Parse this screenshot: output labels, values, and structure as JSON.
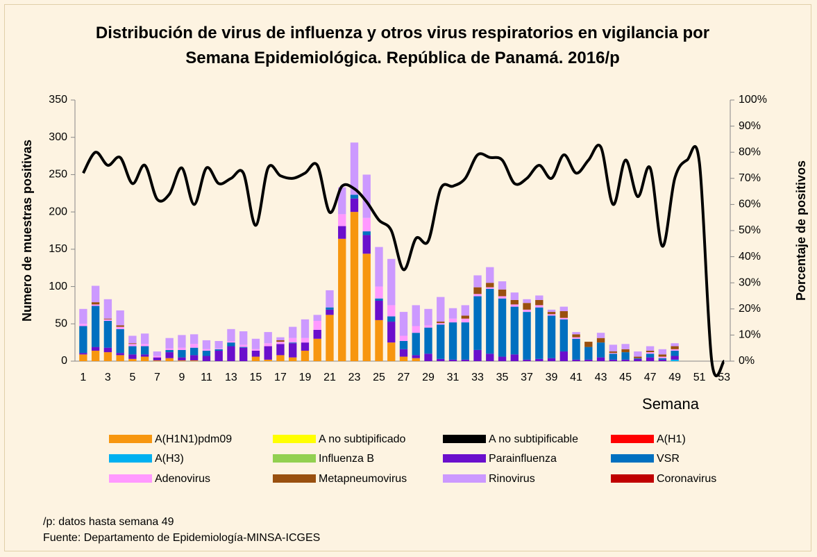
{
  "chart_data": {
    "type": "bar_line",
    "title": "Distribución de virus de influenza y otros virus respiratorios en vigilancia por Semana Epidemiológica. República de Panamá. 2016/p",
    "y_label": "Numero de muestras positivas",
    "y2_label": "Porcentaje de positivos",
    "x_label": "Semana",
    "categories": [
      1,
      null,
      3,
      null,
      5,
      null,
      7,
      null,
      9,
      null,
      11,
      null,
      13,
      null,
      15,
      null,
      17,
      null,
      19,
      null,
      21,
      null,
      23,
      null,
      25,
      null,
      27,
      null,
      29,
      null,
      31,
      null,
      33,
      null,
      35,
      null,
      37,
      null,
      39,
      null,
      41,
      null,
      43,
      null,
      45,
      null,
      47,
      null,
      49,
      null,
      51,
      null,
      53
    ],
    "ylim": [
      0,
      350
    ],
    "yticks": [
      0,
      50,
      100,
      150,
      200,
      250,
      300,
      350
    ],
    "y2lim": [
      0,
      100
    ],
    "y2ticks": [
      {
        "value": 0,
        "label": "0%"
      },
      {
        "value": 10,
        "label": "10%"
      },
      {
        "value": 20,
        "label": "20%"
      },
      {
        "value": 30,
        "label": "30%"
      },
      {
        "value": 40,
        "label": "40%"
      },
      {
        "value": 50,
        "label": "50%"
      },
      {
        "value": 60,
        "label": "60%"
      },
      {
        "value": 70,
        "label": "70%"
      },
      {
        "value": 80,
        "label": "80%"
      },
      {
        "value": 90,
        "label": "90%"
      },
      {
        "value": 100,
        "label": "100%"
      }
    ],
    "stacked": true,
    "series": [
      {
        "name": "A(H1N1)pdm09",
        "color": "#f7960f",
        "values": [
          9,
          14,
          12,
          8,
          3,
          6,
          1,
          4,
          1,
          1,
          0,
          0,
          0,
          0,
          6,
          2,
          8,
          5,
          14,
          30,
          62,
          164,
          200,
          144,
          55,
          25,
          6,
          4,
          0,
          0,
          0,
          0,
          0,
          0,
          0,
          0,
          0,
          0,
          0,
          0,
          0,
          0,
          0,
          0,
          0,
          0,
          0,
          0,
          0,
          0,
          0,
          0,
          0
        ]
      },
      {
        "name": "A no subtipificado",
        "color": "#ffff00",
        "values": [
          0,
          0,
          0,
          0,
          0,
          0,
          0,
          0,
          0,
          0,
          0,
          0,
          0,
          0,
          0,
          0,
          0,
          0,
          0,
          0,
          0,
          0,
          0,
          0,
          0,
          0,
          0,
          0,
          0,
          0,
          0,
          0,
          0,
          0,
          0,
          0,
          0,
          0,
          0,
          0,
          0,
          0,
          0,
          0,
          0,
          0,
          0,
          0,
          0,
          0,
          0,
          0,
          0
        ]
      },
      {
        "name": "A no subtipificable",
        "color": "#000000",
        "values": [
          0,
          0,
          0,
          0,
          0,
          0,
          0,
          0,
          0,
          0,
          0,
          0,
          0,
          0,
          0,
          0,
          0,
          0,
          0,
          0,
          0,
          0,
          0,
          0,
          0,
          0,
          0,
          0,
          0,
          0,
          0,
          0,
          0,
          0,
          0,
          0,
          0,
          0,
          0,
          0,
          0,
          0,
          0,
          0,
          0,
          0,
          0,
          0,
          0,
          0,
          0,
          0,
          0
        ]
      },
      {
        "name": "A(H1)",
        "color": "#ff0000",
        "values": [
          0,
          0,
          0,
          0,
          0,
          0,
          0,
          0,
          0,
          0,
          0,
          0,
          0,
          0,
          0,
          0,
          0,
          0,
          0,
          0,
          0,
          0,
          0,
          0,
          0,
          0,
          0,
          0,
          0,
          0,
          0,
          0,
          0,
          0,
          0,
          0,
          0,
          0,
          0,
          0,
          0,
          0,
          0,
          0,
          0,
          0,
          0,
          0,
          0,
          0,
          0,
          0,
          0
        ]
      },
      {
        "name": "A(H3)",
        "color": "#00b0f0",
        "values": [
          0,
          0,
          0,
          0,
          0,
          0,
          0,
          0,
          0,
          0,
          0,
          0,
          0,
          0,
          0,
          0,
          0,
          0,
          0,
          0,
          0,
          0,
          0,
          0,
          0,
          0,
          0,
          0,
          0,
          0,
          0,
          0,
          0,
          0,
          0,
          0,
          0,
          0,
          0,
          0,
          0,
          0,
          0,
          0,
          0,
          0,
          0,
          0,
          2,
          0,
          0,
          0,
          0
        ]
      },
      {
        "name": "Influenza  B",
        "color": "#92d050",
        "values": [
          0,
          0,
          0,
          0,
          0,
          0,
          0,
          0,
          0,
          0,
          0,
          0,
          0,
          0,
          0,
          0,
          0,
          0,
          0,
          0,
          0,
          0,
          0,
          0,
          0,
          0,
          0,
          0,
          0,
          0,
          0,
          0,
          0,
          0,
          0,
          0,
          0,
          0,
          0,
          0,
          0,
          0,
          0,
          0,
          0,
          0,
          0,
          0,
          0,
          0,
          0,
          0,
          0
        ]
      },
      {
        "name": "Parainfluenza",
        "color": "#6a0fcc",
        "values": [
          2,
          5,
          6,
          3,
          6,
          3,
          4,
          8,
          4,
          7,
          7,
          14,
          20,
          18,
          8,
          18,
          15,
          19,
          11,
          12,
          7,
          17,
          18,
          25,
          26,
          28,
          10,
          4,
          10,
          3,
          2,
          2,
          15,
          10,
          6,
          9,
          2,
          3,
          4,
          13,
          2,
          2,
          5,
          2,
          2,
          3,
          5,
          2,
          5,
          0,
          0,
          0,
          0
        ]
      },
      {
        "name": "VSR",
        "color": "#0070c0",
        "values": [
          36,
          55,
          36,
          32,
          11,
          11,
          0,
          3,
          10,
          10,
          7,
          2,
          5,
          1,
          0,
          0,
          0,
          1,
          0,
          0,
          3,
          0,
          5,
          5,
          3,
          7,
          11,
          30,
          35,
          46,
          50,
          50,
          72,
          87,
          78,
          64,
          64,
          69,
          57,
          43,
          28,
          17,
          20,
          8,
          10,
          1,
          5,
          2,
          7,
          0,
          0,
          0,
          0
        ]
      },
      {
        "name": "Adenovirus",
        "color": "#ff99ff",
        "values": [
          3,
          2,
          2,
          3,
          3,
          3,
          2,
          2,
          3,
          5,
          2,
          1,
          2,
          3,
          2,
          4,
          3,
          6,
          6,
          12,
          0,
          16,
          0,
          18,
          16,
          15,
          7,
          9,
          3,
          2,
          5,
          5,
          3,
          2,
          3,
          3,
          3,
          3,
          2,
          2,
          2,
          0,
          0,
          1,
          0,
          0,
          2,
          2,
          2,
          0,
          0,
          0,
          0
        ]
      },
      {
        "name": "Metapneumovirus",
        "color": "#99500f",
        "values": [
          0,
          3,
          1,
          2,
          1,
          0,
          0,
          0,
          0,
          0,
          0,
          0,
          0,
          0,
          0,
          0,
          2,
          0,
          0,
          0,
          0,
          0,
          0,
          0,
          0,
          0,
          0,
          0,
          0,
          2,
          0,
          4,
          9,
          6,
          9,
          6,
          9,
          7,
          3,
          9,
          4,
          7,
          6,
          2,
          4,
          2,
          2,
          3,
          4,
          0,
          0,
          0,
          0
        ]
      },
      {
        "name": "Rinovirus",
        "color": "#cc99ff",
        "values": [
          20,
          22,
          26,
          20,
          10,
          14,
          6,
          14,
          17,
          13,
          12,
          10,
          16,
          18,
          14,
          15,
          4,
          15,
          25,
          8,
          23,
          36,
          70,
          58,
          53,
          62,
          32,
          28,
          22,
          33,
          14,
          14,
          16,
          21,
          11,
          10,
          5,
          6,
          3,
          6,
          3,
          0,
          7,
          9,
          7,
          7,
          6,
          7,
          4,
          0,
          0,
          0,
          0
        ]
      },
      {
        "name": "Coronavirus",
        "color": "#c00000",
        "values": [
          0,
          0,
          0,
          0,
          0,
          0,
          0,
          0,
          0,
          0,
          0,
          0,
          0,
          0,
          0,
          0,
          0,
          0,
          0,
          0,
          0,
          0,
          0,
          0,
          0,
          0,
          0,
          0,
          0,
          0,
          0,
          0,
          0,
          0,
          0,
          0,
          0,
          0,
          0,
          0,
          0,
          0,
          0,
          0,
          0,
          0,
          0,
          0,
          0,
          0,
          0,
          0,
          0
        ]
      }
    ],
    "line": {
      "color": "#000000",
      "axis": "y2",
      "values": [
        72,
        80,
        75,
        78,
        68,
        75,
        62,
        64,
        74,
        60,
        74,
        68,
        70,
        72,
        52,
        74,
        71,
        70,
        72,
        75,
        57,
        67,
        66,
        61,
        54,
        50,
        35,
        47,
        46,
        66,
        67,
        70,
        79,
        78,
        77,
        68,
        70,
        75,
        70,
        79,
        72,
        77,
        82,
        60,
        77,
        63,
        74,
        44,
        70,
        77,
        76,
        0,
        0
      ]
    }
  },
  "notes": [
    "/p: datos hasta semana 49",
    "Fuente: Departamento de Epidemiología-MINSA-ICGES"
  ]
}
